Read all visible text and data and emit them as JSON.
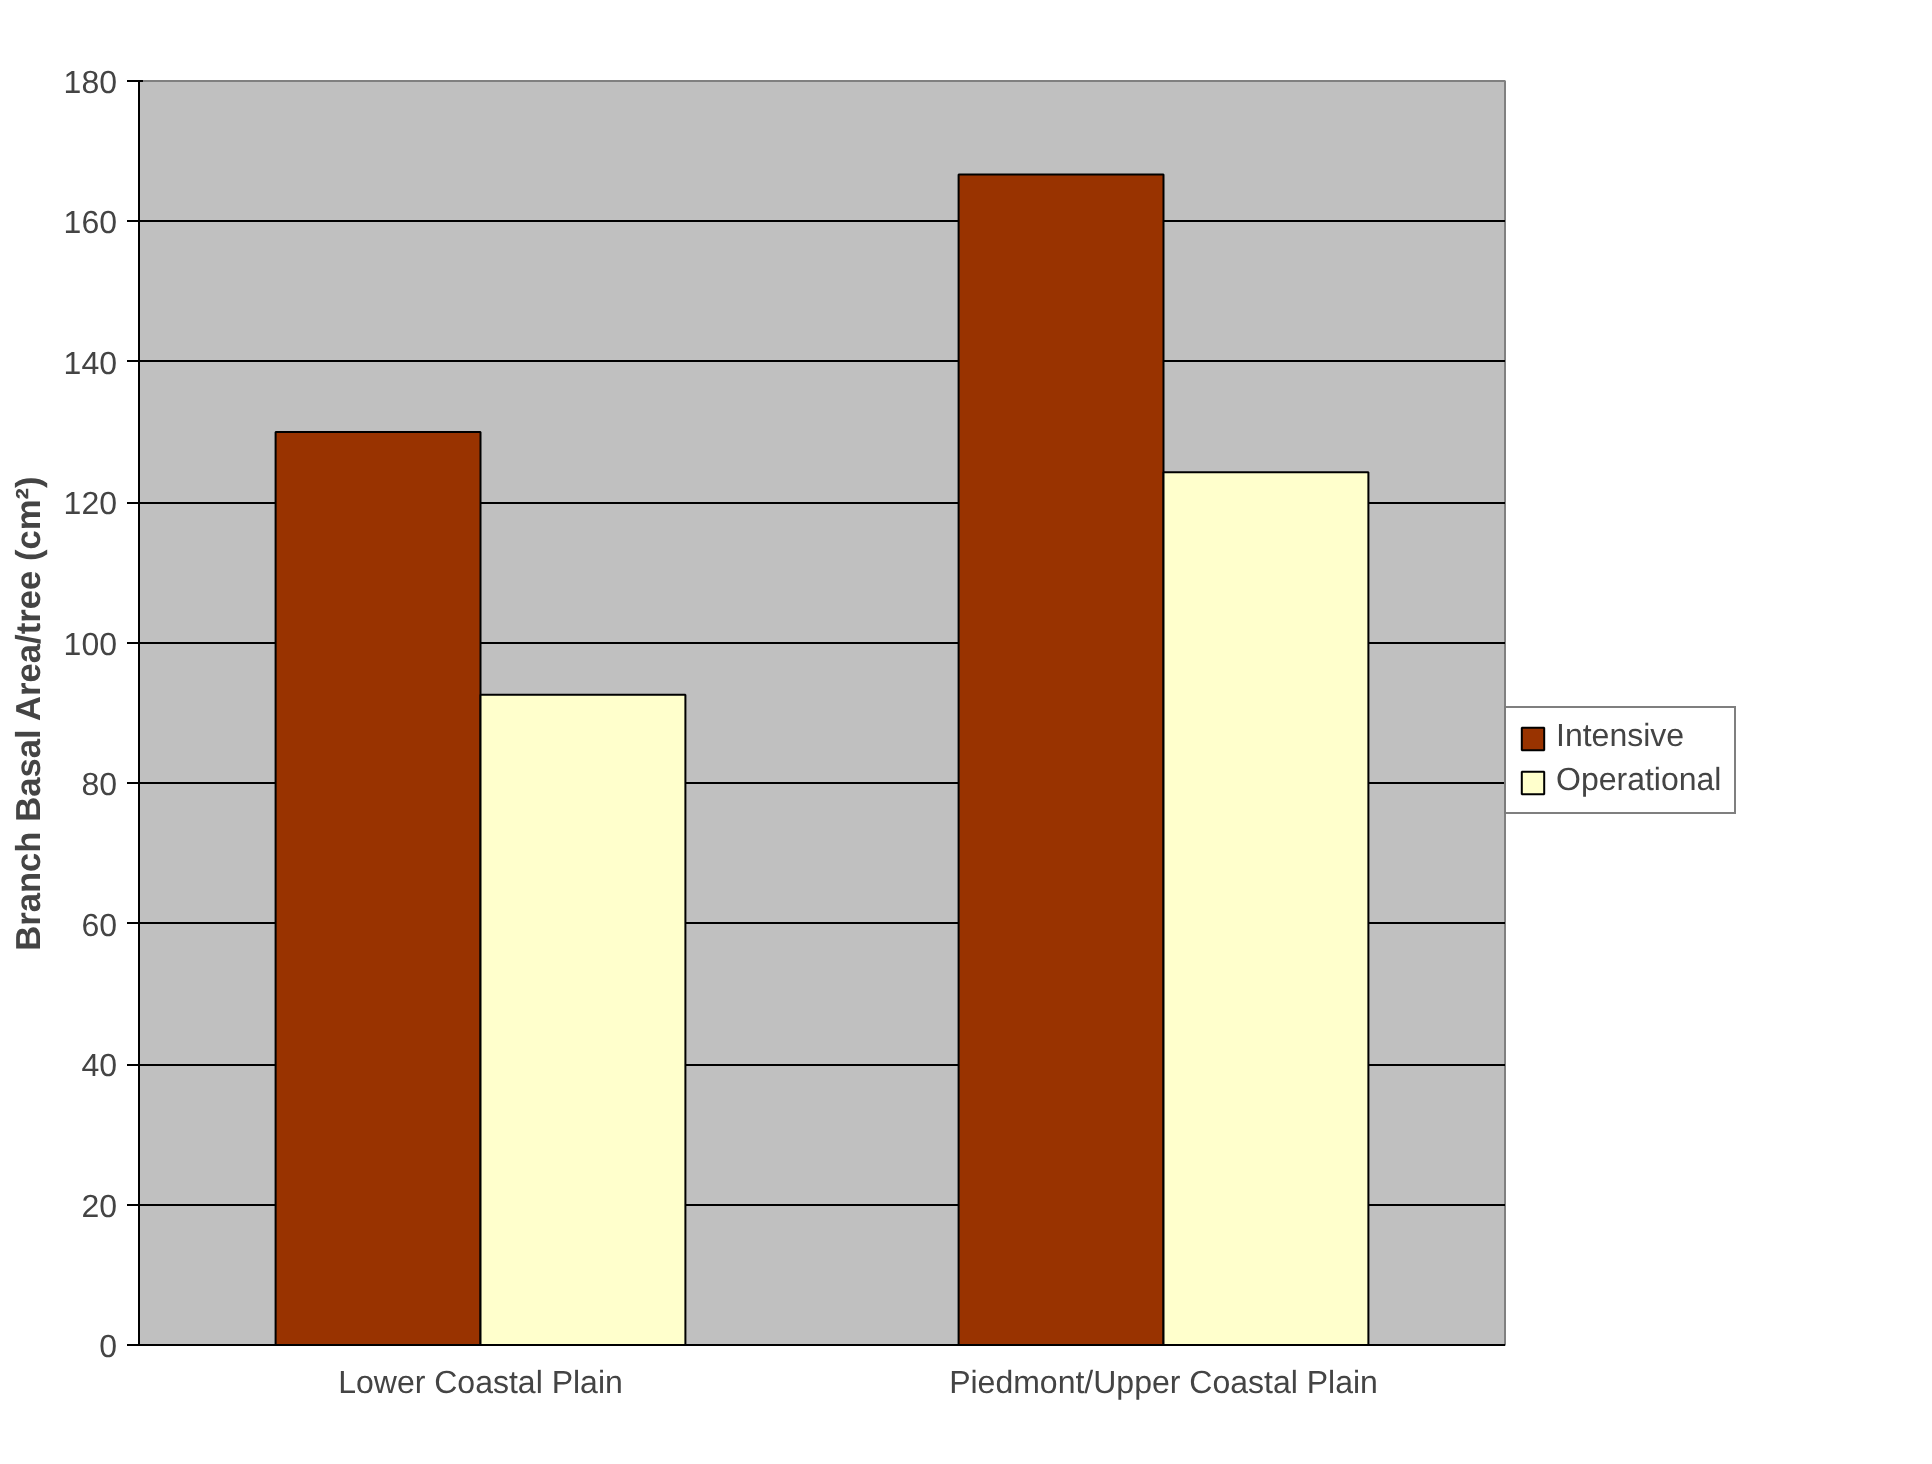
{
  "chart_data": {
    "type": "bar",
    "ylabel": "Branch Basal Area/tree (cm²)",
    "categories": [
      "Lower Coastal Plain",
      "Piedmont/Upper Coastal Plain"
    ],
    "series": [
      {
        "name": "Intensive",
        "color": "#993300",
        "values": [
          130,
          166.7
        ]
      },
      {
        "name": "Operational",
        "color": "#ffffcc",
        "values": [
          92.6,
          124.3
        ]
      }
    ],
    "ylim": [
      0,
      180
    ],
    "yticks": [
      0,
      20,
      40,
      60,
      80,
      100,
      120,
      140,
      160,
      180
    ],
    "grid": "y",
    "legend": "right"
  }
}
